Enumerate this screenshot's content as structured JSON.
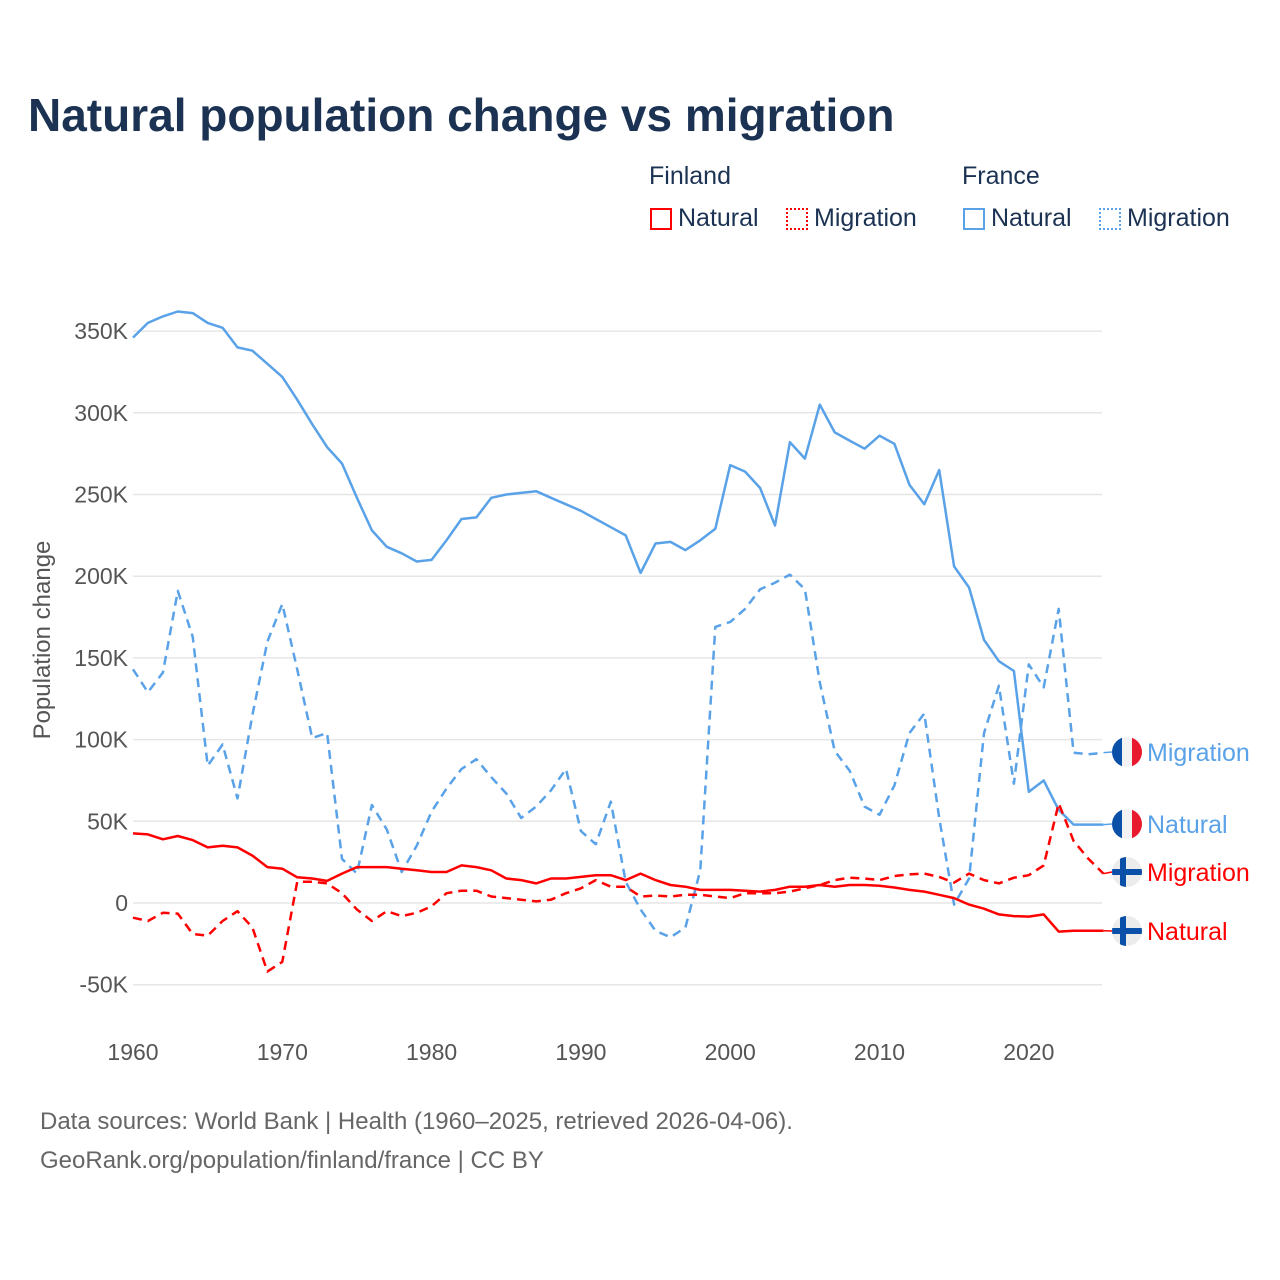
{
  "title": "Natural population change vs migration",
  "legend": {
    "groups": [
      {
        "country": "Finland",
        "color": "#ff0000",
        "items": [
          "Natural",
          "Migration"
        ]
      },
      {
        "country": "France",
        "color": "#5aa2e8",
        "items": [
          "Natural",
          "Migration"
        ]
      }
    ]
  },
  "footer": {
    "line1": "Data sources: World Bank | Health (1960–2025, retrieved 2026-04-06).",
    "line2": "GeoRank.org/population/finland/france | CC BY"
  },
  "chart_data": {
    "type": "line",
    "title": "Natural population change vs migration",
    "xlabel": "",
    "ylabel": "Population change",
    "xlim": [
      1960,
      2025
    ],
    "ylim": [
      -70000,
      370000
    ],
    "xticks": [
      1960,
      1970,
      1980,
      1990,
      2000,
      2010,
      2020
    ],
    "xtick_labels": [
      "1960",
      "1970",
      "1980",
      "1990",
      "2000",
      "2010",
      "2020"
    ],
    "yticks": [
      -50000,
      0,
      50000,
      100000,
      150000,
      200000,
      250000,
      300000,
      350000
    ],
    "ytick_labels": [
      "-50K",
      "0",
      "50K",
      "100K",
      "150K",
      "200K",
      "250K",
      "300K",
      "350K"
    ],
    "grid": true,
    "legend_position": "top-right",
    "x_start": 1960,
    "series": [
      {
        "name": "France Natural",
        "country": "France",
        "kind": "Natural",
        "color": "#5aa2e8",
        "dashed": false,
        "end_label": "Natural",
        "units": "thousands",
        "values": [
          346,
          355,
          359,
          362,
          361,
          355,
          352,
          340,
          338,
          330,
          322,
          308,
          293,
          279,
          269,
          248,
          228,
          218,
          214,
          209,
          210,
          222,
          235,
          236,
          248,
          250,
          251,
          252,
          248,
          244,
          240,
          235,
          230,
          225,
          202,
          220,
          221,
          216,
          222,
          229,
          268,
          264,
          254,
          231,
          282,
          272,
          305,
          288,
          283,
          278,
          286,
          281,
          256,
          244,
          265,
          206,
          193,
          161,
          148,
          142,
          68,
          75,
          57,
          48,
          48,
          48
        ]
      },
      {
        "name": "France Migration",
        "country": "France",
        "kind": "Migration",
        "color": "#5aa2e8",
        "dashed": true,
        "end_label": "Migration",
        "units": "thousands",
        "values": [
          143,
          129,
          141,
          191,
          163,
          84,
          97,
          64,
          115,
          160,
          183,
          143,
          101,
          104,
          27,
          18,
          60,
          45,
          19,
          35,
          56,
          70,
          82,
          88,
          77,
          67,
          52,
          59,
          69,
          82,
          44,
          36,
          62,
          13,
          -4,
          -17,
          -21,
          -15,
          20,
          169,
          172,
          180,
          192,
          196,
          201,
          192,
          135,
          93,
          81,
          59,
          54,
          72,
          104,
          116,
          52,
          -1,
          15,
          104,
          133,
          73,
          146,
          132,
          180,
          92,
          91,
          92
        ]
      },
      {
        "name": "Finland Natural",
        "country": "Finland",
        "kind": "Natural",
        "color": "#ff0000",
        "dashed": false,
        "end_label": "Natural",
        "units": "thousands",
        "values": [
          42.6,
          42,
          39,
          41,
          38.5,
          34,
          35,
          34,
          29,
          22,
          21,
          15.7,
          15,
          13.5,
          18,
          22,
          22,
          22,
          21,
          20,
          19,
          19,
          23,
          22,
          20,
          15,
          14,
          12,
          15,
          15,
          16,
          17,
          17,
          14,
          18,
          14,
          11,
          10,
          8,
          8,
          8,
          7.5,
          7,
          8,
          10,
          10,
          11,
          10,
          11,
          11,
          10.5,
          9.5,
          8,
          7,
          5,
          3,
          -1,
          -3.5,
          -7,
          -8,
          -8.3,
          -7,
          -17.5,
          -17,
          -17,
          -17
        ]
      },
      {
        "name": "Finland Migration",
        "country": "Finland",
        "kind": "Migration",
        "color": "#ff0000",
        "dashed": true,
        "end_label": "Migration",
        "units": "thousands",
        "values": [
          -9,
          -11,
          -6,
          -6.5,
          -19,
          -20,
          -11,
          -5,
          -15,
          -42,
          -36,
          13,
          13,
          12,
          6,
          -4,
          -11,
          -5,
          -8,
          -6,
          -2,
          6,
          7.5,
          7.5,
          4,
          3,
          2,
          1,
          2,
          6,
          9,
          14,
          10,
          10,
          4,
          4.5,
          4,
          5,
          5,
          4,
          3,
          6,
          6,
          6,
          7,
          9,
          11,
          14,
          15.5,
          15,
          14,
          16.5,
          17.5,
          18,
          16,
          12.5,
          18,
          14,
          12,
          15.5,
          17,
          23,
          61,
          38,
          27,
          18
        ]
      }
    ]
  }
}
